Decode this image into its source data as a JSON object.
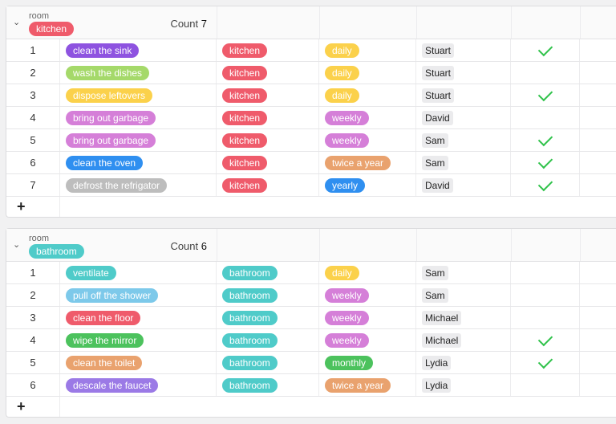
{
  "groups": [
    {
      "field_label": "room",
      "group_value": "kitchen",
      "group_color": "#ef5b6b",
      "count_label": "Count",
      "count": "7",
      "rows": [
        {
          "num": "1",
          "task": "clean the sink",
          "task_color": "#8e53e0",
          "room": "kitchen",
          "room_color": "#ef5b6b",
          "freq": "daily",
          "freq_color": "#fbd14b",
          "person": "Stuart",
          "done": true
        },
        {
          "num": "2",
          "task": "wash the dishes",
          "task_color": "#a5d96a",
          "room": "kitchen",
          "room_color": "#ef5b6b",
          "freq": "daily",
          "freq_color": "#fbd14b",
          "person": "Stuart",
          "done": false
        },
        {
          "num": "3",
          "task": "dispose leftovers",
          "task_color": "#fbd14b",
          "room": "kitchen",
          "room_color": "#ef5b6b",
          "freq": "daily",
          "freq_color": "#fbd14b",
          "person": "Stuart",
          "done": true
        },
        {
          "num": "4",
          "task": "bring out garbage",
          "task_color": "#d57fd8",
          "room": "kitchen",
          "room_color": "#ef5b6b",
          "freq": "weekly",
          "freq_color": "#d57fd8",
          "person": "David",
          "done": false
        },
        {
          "num": "5",
          "task": "bring out garbage",
          "task_color": "#d57fd8",
          "room": "kitchen",
          "room_color": "#ef5b6b",
          "freq": "weekly",
          "freq_color": "#d57fd8",
          "person": "Sam",
          "done": true
        },
        {
          "num": "6",
          "task": "clean the oven",
          "task_color": "#2f8ff0",
          "room": "kitchen",
          "room_color": "#ef5b6b",
          "freq": "twice a year",
          "freq_color": "#e9a26e",
          "person": "Sam",
          "done": true
        },
        {
          "num": "7",
          "task": "defrost the refrigator",
          "task_color": "#bdbdbd",
          "room": "kitchen",
          "room_color": "#ef5b6b",
          "freq": "yearly",
          "freq_color": "#2f8ff0",
          "person": "David",
          "done": true
        }
      ]
    },
    {
      "field_label": "room",
      "group_value": "bathroom",
      "group_color": "#4fcbc9",
      "count_label": "Count",
      "count": "6",
      "rows": [
        {
          "num": "1",
          "task": "ventilate",
          "task_color": "#4fcbc9",
          "room": "bathroom",
          "room_color": "#4fcbc9",
          "freq": "daily",
          "freq_color": "#fbd14b",
          "person": "Sam",
          "done": false
        },
        {
          "num": "2",
          "task": "pull off the shower",
          "task_color": "#7dc9ea",
          "room": "bathroom",
          "room_color": "#4fcbc9",
          "freq": "weekly",
          "freq_color": "#d57fd8",
          "person": "Sam",
          "done": false
        },
        {
          "num": "3",
          "task": "clean the floor",
          "task_color": "#ef5b6b",
          "room": "bathroom",
          "room_color": "#4fcbc9",
          "freq": "weekly",
          "freq_color": "#d57fd8",
          "person": "Michael",
          "done": false
        },
        {
          "num": "4",
          "task": "wipe the mirror",
          "task_color": "#4cc25d",
          "room": "bathroom",
          "room_color": "#4fcbc9",
          "freq": "weekly",
          "freq_color": "#d57fd8",
          "person": "Michael",
          "done": true
        },
        {
          "num": "5",
          "task": "clean the toilet",
          "task_color": "#e9a26e",
          "room": "bathroom",
          "room_color": "#4fcbc9",
          "freq": "monthly",
          "freq_color": "#4cc25d",
          "person": "Lydia",
          "done": true
        },
        {
          "num": "6",
          "task": "descale the faucet",
          "task_color": "#9b7ae6",
          "room": "bathroom",
          "room_color": "#4fcbc9",
          "freq": "twice a year",
          "freq_color": "#e9a26e",
          "person": "Lydia",
          "done": false
        }
      ]
    }
  ],
  "add_row_label": "+",
  "icons": {
    "collapse": "chevron-down-icon",
    "done": "checkmark-icon",
    "add": "plus-icon"
  }
}
